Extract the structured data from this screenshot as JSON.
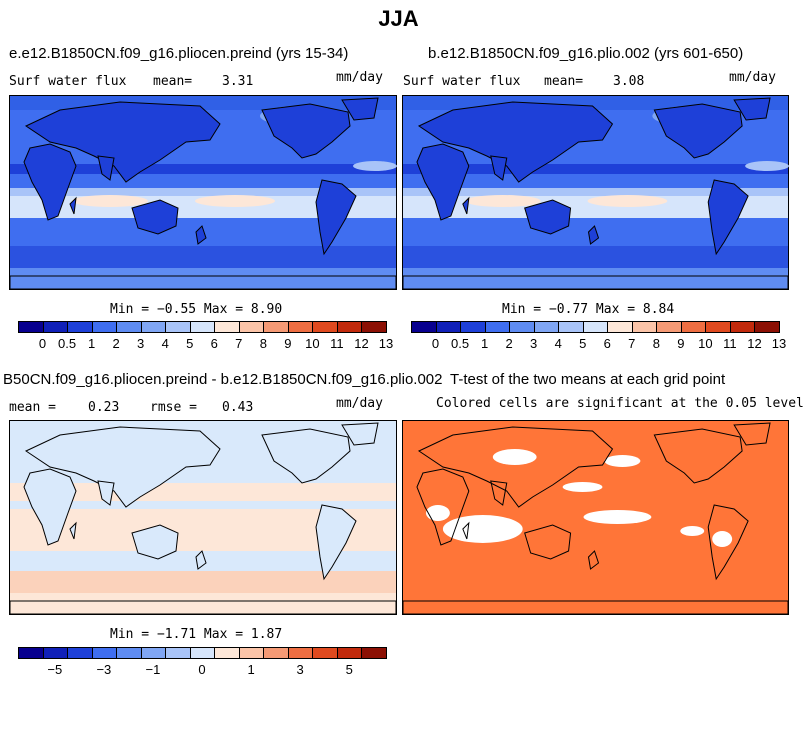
{
  "title": "JJA",
  "colors": {
    "ocean_dark": "#1e40d8",
    "ocean_mid": "#3f6ef0",
    "ocean_light": "#9fb8f6",
    "land_diff": "#d9e9fb",
    "sig_orange": "#ff7538",
    "coast": "#000000"
  },
  "panels": [
    {
      "title": "e.e12.B1850CN.f09_g16.pliocen.preind (yrs 15-34)",
      "left_label": "Surf water flux",
      "mean_label": "mean=",
      "mean_value": "3.31",
      "units": "mm/day",
      "minmax": "Min =  −0.55 Max =    8.90"
    },
    {
      "title": "b.e12.B1850CN.f09_g16.plio.002 (yrs 601-650)",
      "left_label": "Surf water flux",
      "mean_label": "mean=",
      "mean_value": "3.08",
      "units": "mm/day",
      "minmax": "Min =  −0.77 Max =    8.84"
    },
    {
      "title": "B50CN.f09_g16.pliocen.preind - b.e12.B1850CN.f09_g16.plio.002",
      "left_label": "mean =",
      "mean_value": "0.23",
      "rmse_label": "rmse =",
      "rmse_value": "0.43",
      "units": "mm/day",
      "minmax": "Min =  −1.71 Max =    1.87"
    },
    {
      "title": "T-test of the two means at each grid point",
      "subtitle": "Colored cells are significant at the 0.05 level"
    }
  ],
  "colorbars": {
    "absolute": {
      "colors": [
        "#08008f",
        "#1020b8",
        "#1e40d8",
        "#3f6ef0",
        "#5f8cf2",
        "#80a6f4",
        "#a9c4f8",
        "#d6e5fb",
        "#fde7d8",
        "#fbc4a8",
        "#f59a75",
        "#ee6e42",
        "#e04a1f",
        "#c22a0c",
        "#8c1004"
      ],
      "labels": [
        "0",
        "0.5",
        "1",
        "2",
        "3",
        "4",
        "5",
        "6",
        "7",
        "8",
        "9",
        "10",
        "11",
        "12",
        "13"
      ]
    },
    "difference": {
      "colors": [
        "#08008f",
        "#1020b8",
        "#1e40d8",
        "#3f6ef0",
        "#5f8cf2",
        "#80a6f4",
        "#a9c4f8",
        "#d6e5fb",
        "#fde7d8",
        "#fbc4a8",
        "#f59a75",
        "#ee6e42",
        "#e04a1f",
        "#c22a0c",
        "#8c1004"
      ],
      "labels": [
        "−5",
        "",
        "−3",
        "",
        "−1",
        "",
        "0",
        "",
        "1",
        "",
        "3",
        "",
        "5"
      ]
    }
  },
  "chart_data": [
    {
      "type": "heatmap",
      "title": "e.e12.B1850CN.f09_g16.pliocen.preind (yrs 15-34)",
      "variable": "Surf water flux",
      "units": "mm/day",
      "mean": 3.31,
      "min": -0.55,
      "max": 8.9,
      "colorbar_levels": [
        0,
        0.5,
        1,
        2,
        3,
        4,
        5,
        6,
        7,
        8,
        9,
        10,
        11,
        12,
        13
      ]
    },
    {
      "type": "heatmap",
      "title": "b.e12.B1850CN.f09_g16.plio.002 (yrs 601-650)",
      "variable": "Surf water flux",
      "units": "mm/day",
      "mean": 3.08,
      "min": -0.77,
      "max": 8.84,
      "colorbar_levels": [
        0,
        0.5,
        1,
        2,
        3,
        4,
        5,
        6,
        7,
        8,
        9,
        10,
        11,
        12,
        13
      ]
    },
    {
      "type": "heatmap",
      "title": "B50CN.f09_g16.pliocen.preind - b.e12.B1850CN.f09_g16.plio.002",
      "units": "mm/day",
      "mean": 0.23,
      "rmse": 0.43,
      "min": -1.71,
      "max": 1.87,
      "colorbar_labels": [
        "−5",
        "−3",
        "−1",
        "0",
        "1",
        "3",
        "5"
      ]
    },
    {
      "type": "heatmap",
      "title": "T-test of the two means at each grid point",
      "subtitle": "Colored cells are significant at the 0.05 level"
    }
  ]
}
